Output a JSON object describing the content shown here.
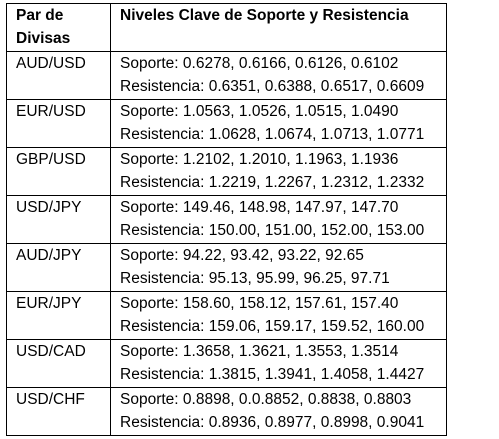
{
  "table": {
    "headers": {
      "pair": "Par de Divisas",
      "levels": "Niveles Clave de Soporte y Resistencia"
    },
    "rows": [
      {
        "pair": "AUD/USD",
        "support": "Soporte: 0.6278, 0.6166, 0.6126, 0.6102",
        "resistance": "Resistencia: 0.6351, 0.6388, 0.6517, 0.6609"
      },
      {
        "pair": "EUR/USD",
        "support": "Soporte: 1.0563, 1.0526, 1.0515, 1.0490",
        "resistance": "Resistencia: 1.0628, 1.0674, 1.0713, 1.0771"
      },
      {
        "pair": "GBP/USD",
        "support": "Soporte: 1.2102, 1.2010, 1.1963, 1.1936",
        "resistance": "Resistencia: 1.2219, 1.2267, 1.2312, 1.2332"
      },
      {
        "pair": "USD/JPY",
        "support": "Soporte: 149.46, 148.98, 147.97, 147.70",
        "resistance": "Resistencia: 150.00, 151.00, 152.00, 153.00"
      },
      {
        "pair": "AUD/JPY",
        "support": "Soporte: 94.22, 93.42, 93.22, 92.65",
        "resistance": "Resistencia: 95.13, 95.99, 96.25, 97.71"
      },
      {
        "pair": "EUR/JPY",
        "support": "Soporte: 158.60, 158.12, 157.61, 157.40",
        "resistance": "Resistencia: 159.06, 159.17, 159.52, 160.00"
      },
      {
        "pair": "USD/CAD",
        "support": "Soporte: 1.3658, 1.3621, 1.3553, 1.3514",
        "resistance": "Resistencia: 1.3815, 1.3941, 1.4058, 1.4427"
      },
      {
        "pair": "USD/CHF",
        "support": "Soporte: 0.8898, 0.0.8852, 0.8838, 0.8803",
        "resistance": "Resistencia: 0.8936, 0.8977, 0.8998, 0.9041"
      }
    ]
  }
}
